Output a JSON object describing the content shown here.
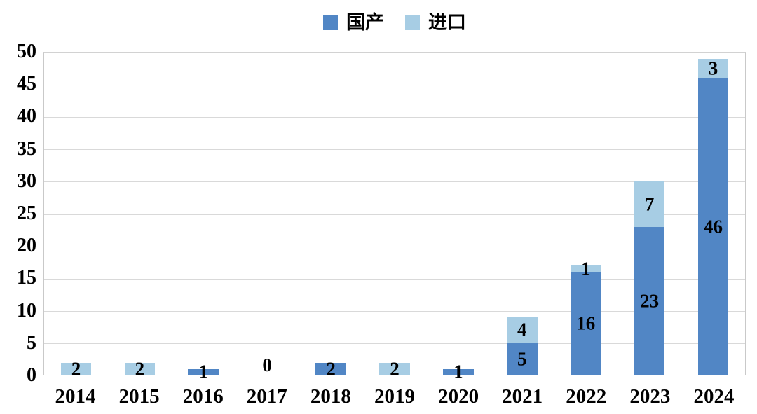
{
  "chart_data": {
    "type": "bar",
    "stacked": true,
    "title": "",
    "xlabel": "",
    "ylabel": "",
    "categories": [
      "2014",
      "2015",
      "2016",
      "2017",
      "2018",
      "2019",
      "2020",
      "2021",
      "2022",
      "2023",
      "2024"
    ],
    "series": [
      {
        "name": "国产",
        "color": "#5186c5",
        "values": [
          0,
          0,
          1,
          0,
          2,
          0,
          1,
          5,
          16,
          23,
          46
        ]
      },
      {
        "name": "进口",
        "color": "#a7cde4",
        "values": [
          2,
          2,
          0,
          0,
          0,
          2,
          0,
          4,
          1,
          7,
          3
        ]
      }
    ],
    "totals": [
      2,
      2,
      1,
      0,
      2,
      2,
      1,
      9,
      17,
      30,
      49
    ],
    "ylim": [
      0,
      50
    ],
    "yticks": [
      0,
      5,
      10,
      15,
      20,
      25,
      30,
      35,
      40,
      45,
      50
    ],
    "grid": true,
    "legend_position": "top-center",
    "data_labels": "segment values centered inside each colored segment, black serif text",
    "zero_labels": {
      "2017": "0"
    },
    "colors": {
      "grid": "#d9d9d9",
      "plot_border": "#c9c9c9",
      "label_text": "#000000",
      "background": "#ffffff"
    }
  }
}
